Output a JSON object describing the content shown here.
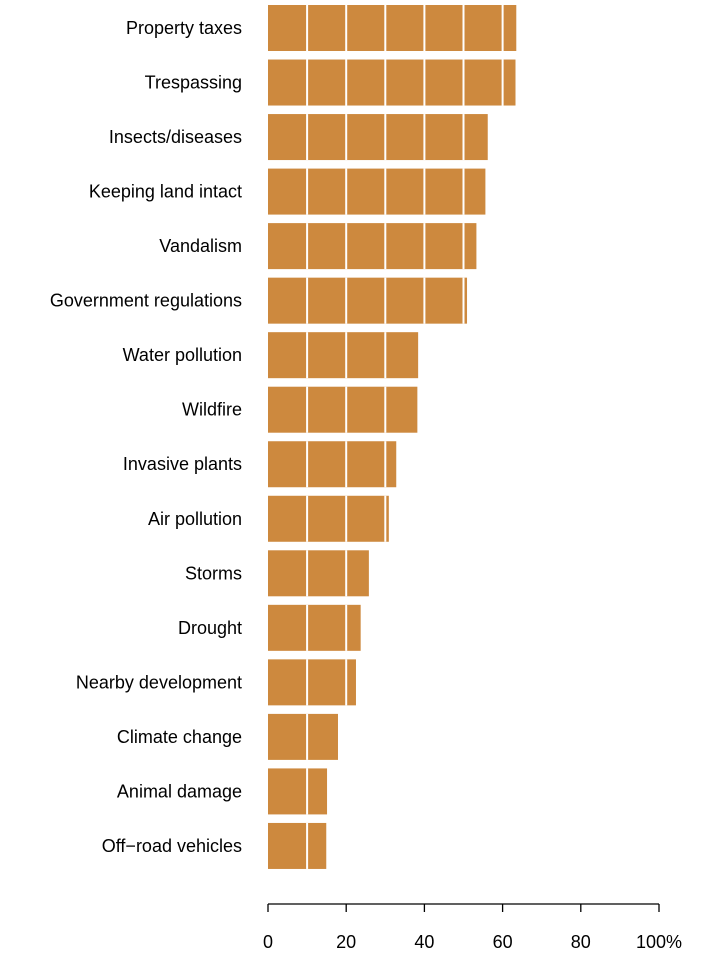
{
  "chart_data": {
    "type": "bar",
    "orientation": "horizontal",
    "categories": [
      "Property taxes",
      "Trespassing",
      "Insects/diseases",
      "Keeping land intact",
      "Vandalism",
      "Government regulations",
      "Water pollution",
      "Wildfire",
      "Invasive plants",
      "Air pollution",
      "Storms",
      "Drought",
      "Nearby development",
      "Climate change",
      "Animal damage",
      "Off−road vehicles"
    ],
    "values": [
      63.5,
      63.3,
      56.2,
      55.6,
      53.3,
      50.9,
      38.4,
      38.2,
      32.8,
      30.9,
      25.8,
      23.7,
      22.5,
      17.9,
      15.1,
      14.9
    ],
    "title": "",
    "xlabel": "",
    "ylabel": "",
    "xlim": [
      0,
      100
    ],
    "x_ticks": [
      "0",
      "20",
      "40",
      "60",
      "80",
      "100%"
    ],
    "gridlines": "white vertical lines at every 10 units, drawn over the bars",
    "legend": "none"
  },
  "colors": {
    "bar": "#CD893E",
    "grid_on_bar": "#FFFFFF",
    "axis": "#000000",
    "text": "#000000"
  }
}
